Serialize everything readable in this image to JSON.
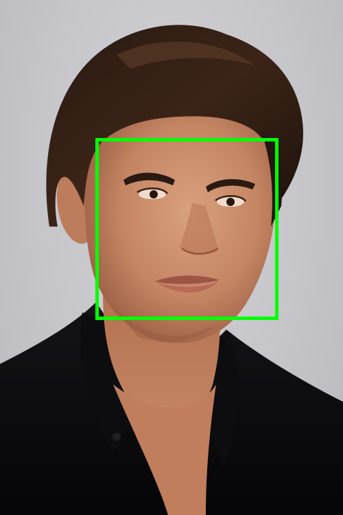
{
  "image": {
    "subject": "portrait-photo",
    "background_color": "#c8c7cc"
  },
  "detection": {
    "label": "face",
    "box_color": "#00ff00"
  }
}
